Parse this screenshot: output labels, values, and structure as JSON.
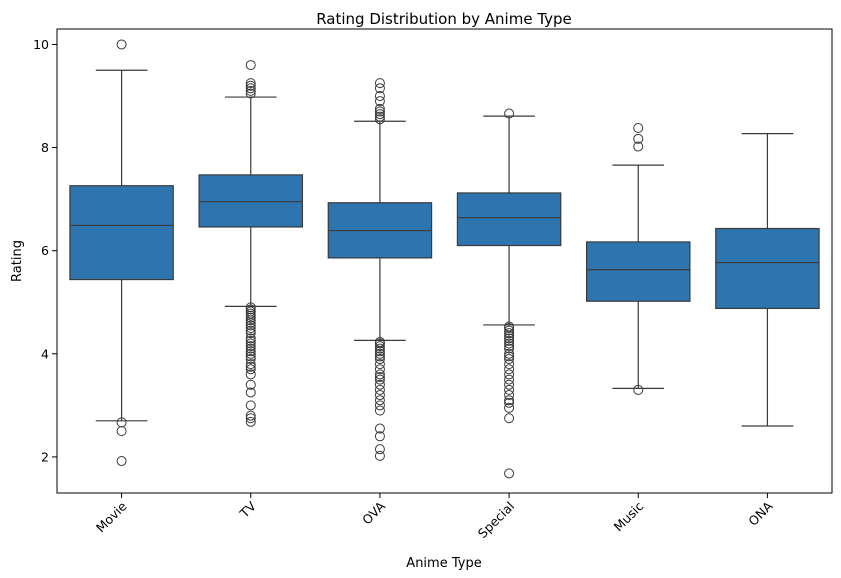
{
  "chart_data": {
    "type": "box",
    "title": "Rating Distribution by Anime Type",
    "xlabel": "Anime Type",
    "ylabel": "Rating",
    "ylim": [
      1.3,
      10.3
    ],
    "yticks": [
      2,
      4,
      6,
      8,
      10
    ],
    "grid": false,
    "box_color": "#2e75b0",
    "line_color": "#3a3a3a",
    "categories": [
      "Movie",
      "TV",
      "OVA",
      "Special",
      "Music",
      "ONA"
    ],
    "boxes": [
      {
        "name": "Movie",
        "whisker_low": 2.7,
        "q1": 5.44,
        "median": 6.49,
        "q3": 7.26,
        "whisker_high": 9.5,
        "outliers": [
          10.0,
          2.67,
          2.5,
          1.92
        ]
      },
      {
        "name": "TV",
        "whisker_low": 4.92,
        "q1": 6.46,
        "median": 6.95,
        "q3": 7.47,
        "whisker_high": 8.98,
        "outliers": [
          9.6,
          9.25,
          9.2,
          9.15,
          9.1,
          9.05,
          4.9,
          4.86,
          4.82,
          4.78,
          4.74,
          4.7,
          4.65,
          4.6,
          4.55,
          4.5,
          4.45,
          4.4,
          4.3,
          4.25,
          4.2,
          4.15,
          4.1,
          4.05,
          4.0,
          3.95,
          3.9,
          3.8,
          3.75,
          3.7,
          3.6,
          3.4,
          3.25,
          3.0,
          2.8,
          2.75,
          2.68
        ]
      },
      {
        "name": "OVA",
        "whisker_low": 4.26,
        "q1": 5.86,
        "median": 6.39,
        "q3": 6.93,
        "whisker_high": 8.51,
        "outliers": [
          9.25,
          9.15,
          9.0,
          8.9,
          8.75,
          8.7,
          8.65,
          8.6,
          8.55,
          4.23,
          4.2,
          4.15,
          4.1,
          4.05,
          4.0,
          3.95,
          3.9,
          3.8,
          3.7,
          3.6,
          3.55,
          3.5,
          3.4,
          3.3,
          3.2,
          3.1,
          3.0,
          2.9,
          2.55,
          2.4,
          2.15,
          2.02
        ]
      },
      {
        "name": "Special",
        "whisker_low": 4.56,
        "q1": 6.1,
        "median": 6.64,
        "q3": 7.12,
        "whisker_high": 8.61,
        "outliers": [
          8.66,
          4.53,
          4.5,
          4.45,
          4.4,
          4.35,
          4.3,
          4.25,
          4.2,
          4.15,
          4.1,
          4.0,
          3.95,
          3.9,
          3.8,
          3.7,
          3.6,
          3.5,
          3.4,
          3.3,
          3.2,
          3.1,
          3.05,
          2.95,
          2.75,
          1.68
        ]
      },
      {
        "name": "Music",
        "whisker_low": 3.33,
        "q1": 5.02,
        "median": 5.63,
        "q3": 6.17,
        "whisker_high": 7.66,
        "outliers": [
          8.38,
          8.17,
          8.02,
          3.3
        ]
      },
      {
        "name": "ONA",
        "whisker_low": 2.6,
        "q1": 4.88,
        "median": 5.77,
        "q3": 6.43,
        "whisker_high": 8.27,
        "outliers": []
      }
    ]
  }
}
